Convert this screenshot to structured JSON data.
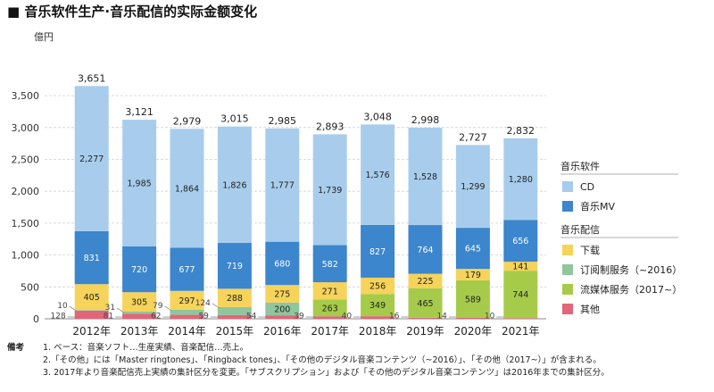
{
  "title": "■ 音乐软件生产·音乐配信的实际金额变化",
  "chart_data": {
    "type": "bar",
    "stacked": true,
    "unit_label": "億円",
    "categories": [
      "2012年",
      "2013年",
      "2014年",
      "2015年",
      "2016年",
      "2017年",
      "2018年",
      "2019年",
      "2020年",
      "2021年"
    ],
    "ylim": [
      0,
      3700
    ],
    "yticks": [
      0,
      500,
      1000,
      1500,
      2000,
      2500,
      3000,
      3500
    ],
    "ytick_labels": [
      "0",
      "500",
      "1,000",
      "1,500",
      "2,000",
      "2,500",
      "3,000",
      "3,500"
    ],
    "totals": [
      "3,651",
      "3,121",
      "2,979",
      "3,015",
      "2,985",
      "2,893",
      "3,048",
      "2,998",
      "2,727",
      "2,832"
    ],
    "series": [
      {
        "name": "其他",
        "color": "#e2657a",
        "values": [
          128,
          81,
          62,
          59,
          54,
          39,
          40,
          16,
          14,
          10
        ]
      },
      {
        "name": "流媒体服务（2017~）",
        "color": "#a6cb4b",
        "values": [
          0,
          0,
          0,
          0,
          0,
          263,
          349,
          465,
          589,
          744
        ]
      },
      {
        "name": "订阅制服务（~2016）",
        "color": "#8fc69d",
        "values": [
          10,
          31,
          79,
          124,
          200,
          0,
          0,
          0,
          0,
          0
        ]
      },
      {
        "name": "下载",
        "color": "#f6d35a",
        "values": [
          405,
          305,
          297,
          288,
          275,
          271,
          256,
          225,
          179,
          141
        ]
      },
      {
        "name": "音乐MV",
        "color": "#3b86cd",
        "values": [
          831,
          720,
          677,
          719,
          680,
          582,
          827,
          764,
          645,
          656
        ]
      },
      {
        "name": "CD",
        "color": "#a8cdec",
        "values": [
          2277,
          1985,
          1864,
          1826,
          1777,
          1739,
          1576,
          1528,
          1299,
          1280
        ]
      }
    ],
    "segment_labels": [
      [
        "128",
        "",
        "10",
        "405",
        "831",
        "2,277"
      ],
      [
        "81",
        "",
        "31",
        "305",
        "720",
        "1,985"
      ],
      [
        "62",
        "",
        "79",
        "297",
        "677",
        "1,864"
      ],
      [
        "59",
        "",
        "124",
        "288",
        "719",
        "1,826"
      ],
      [
        "54",
        "",
        "200",
        "275",
        "680",
        "1,777"
      ],
      [
        "39",
        "263",
        "",
        "271",
        "582",
        "1,739"
      ],
      [
        "40",
        "349",
        "",
        "256",
        "827",
        "1,576"
      ],
      [
        "16",
        "465",
        "",
        "225",
        "764",
        "1,528"
      ],
      [
        "14",
        "589",
        "",
        "179",
        "645",
        "1,299"
      ],
      [
        "10",
        "744",
        "",
        "141",
        "656",
        "1,280"
      ]
    ],
    "legend": {
      "groups": [
        {
          "heading": "音乐软件",
          "items": [
            {
              "label": "CD",
              "color": "#a8cdec"
            },
            {
              "label": "音乐MV",
              "color": "#3b86cd"
            }
          ]
        },
        {
          "heading": "音乐配信",
          "items": [
            {
              "label": "下载",
              "color": "#f6d35a"
            },
            {
              "label": "订阅制服务（~2016）",
              "color": "#8fc69d"
            },
            {
              "label": "流媒体服务（2017~）",
              "color": "#a6cb4b"
            },
            {
              "label": "其他",
              "color": "#e2657a"
            }
          ]
        }
      ]
    }
  },
  "notes": {
    "heading": "備考",
    "lines": [
      "1. ベース：音楽ソフト…生産実績、音楽配信…売上。",
      "2.「その他」には「Master ringtones」、「Ringback tones」、「その他のデジタル音楽コンテンツ（~2016）」、「その他（2017~）」が含まれる。",
      "3. 2017年より音楽配信売上実績の集計区分を変更。「サブスクリプション」および「その他のデジタル音楽コンテンツ」は2016年までの集計区分。"
    ]
  }
}
